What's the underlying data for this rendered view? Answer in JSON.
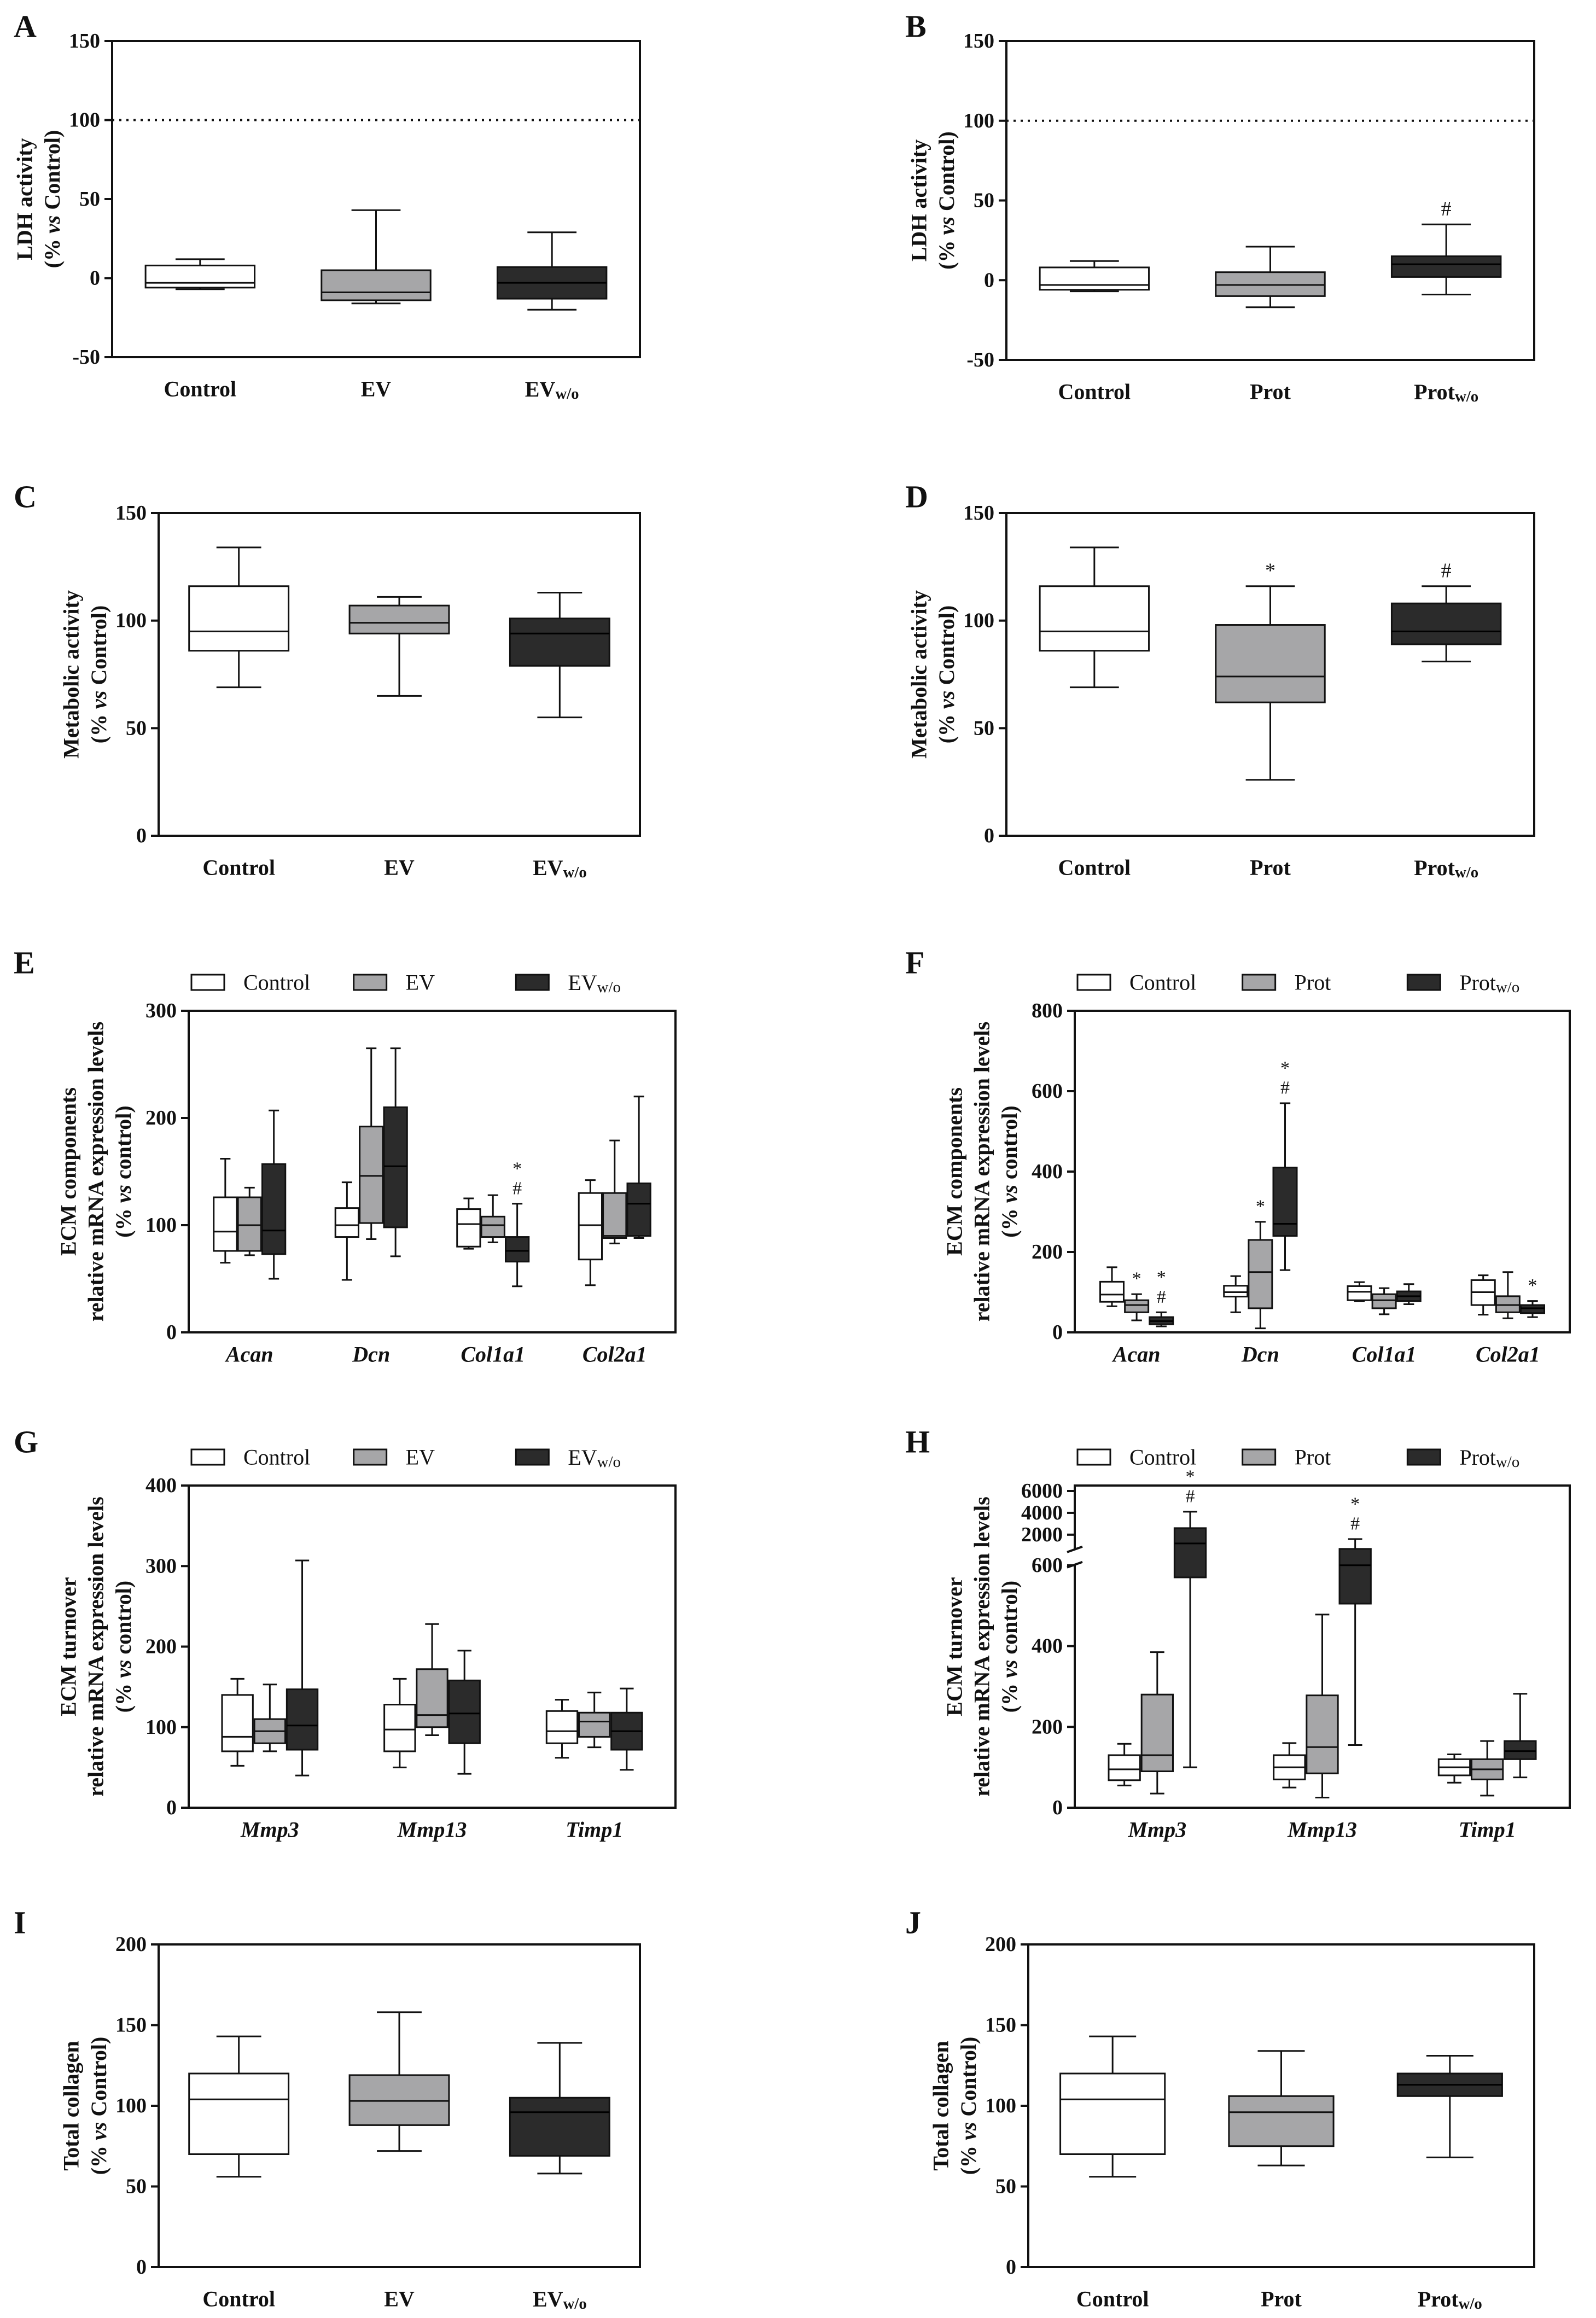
{
  "colors": {
    "white": "#ffffff",
    "gray": "#a6a6a8",
    "dark": "#2b2b2b",
    "line": "#111111"
  },
  "chart_data": [
    {
      "id": "A",
      "type": "box",
      "letter": "A",
      "ylabel": [
        "LDH activity",
        "(% vs Control)"
      ],
      "ylim": [
        -50,
        150
      ],
      "yticks": [
        "150",
        "100",
        "50",
        "0",
        "-50"
      ],
      "refline": 100,
      "groups": [
        {
          "label": "Control",
          "color": "white",
          "min": -7,
          "q1": -6,
          "median": -3,
          "q3": 8,
          "max": 12
        },
        {
          "label": "EV",
          "color": "gray",
          "min": -16,
          "q1": -14,
          "median": -9,
          "q3": 5,
          "max": 43
        },
        {
          "label": "EVw/o",
          "color": "dark",
          "min": -20,
          "q1": -13,
          "median": -3,
          "q3": 7,
          "max": 29
        }
      ]
    },
    {
      "id": "B",
      "type": "box",
      "letter": "B",
      "ylabel": [
        "LDH activity",
        "(% vs Control)"
      ],
      "ylim": [
        -50,
        150
      ],
      "yticks": [
        "150",
        "100",
        "50",
        "0",
        "-50"
      ],
      "refline": 100,
      "groups": [
        {
          "label": "Control",
          "color": "white",
          "min": -7,
          "q1": -6,
          "median": -3,
          "q3": 8,
          "max": 12
        },
        {
          "label": "Prot",
          "color": "gray",
          "min": -17,
          "q1": -10,
          "median": -3,
          "q3": 5,
          "max": 21
        },
        {
          "label": "Protw/o",
          "color": "dark",
          "min": -9,
          "q1": 2,
          "median": 10,
          "q3": 15,
          "max": 35,
          "marks": [
            "#"
          ]
        }
      ]
    },
    {
      "id": "C",
      "type": "box",
      "letter": "C",
      "ylabel": [
        "Metabolic activity",
        "(% vs Control)"
      ],
      "ylim": [
        0,
        150
      ],
      "yticks": [
        "150",
        "100",
        "50",
        "0"
      ],
      "groups": [
        {
          "label": "Control",
          "color": "white",
          "min": 69,
          "q1": 86,
          "median": 95,
          "q3": 116,
          "max": 134
        },
        {
          "label": "EV",
          "color": "gray",
          "min": 65,
          "q1": 94,
          "median": 99,
          "q3": 107,
          "max": 111
        },
        {
          "label": "EVw/o",
          "color": "dark",
          "min": 55,
          "q1": 79,
          "median": 94,
          "q3": 101,
          "max": 113
        }
      ]
    },
    {
      "id": "D",
      "type": "box",
      "letter": "D",
      "ylabel": [
        "Metabolic activity",
        "(% vs Control)"
      ],
      "ylim": [
        0,
        150
      ],
      "yticks": [
        "150",
        "100",
        "50",
        "0"
      ],
      "groups": [
        {
          "label": "Control",
          "color": "white",
          "min": 69,
          "q1": 86,
          "median": 95,
          "q3": 116,
          "max": 134
        },
        {
          "label": "Prot",
          "color": "gray",
          "min": 26,
          "q1": 62,
          "median": 74,
          "q3": 98,
          "max": 116,
          "marks": [
            "*"
          ]
        },
        {
          "label": "Protw/o",
          "color": "dark",
          "min": 81,
          "q1": 89,
          "median": 95,
          "q3": 108,
          "max": 116,
          "marks": [
            "#"
          ]
        }
      ]
    },
    {
      "id": "E",
      "type": "box",
      "letter": "E",
      "ylabel": [
        "ECM components",
        "relative mRNA expression levels",
        "(% vs control)"
      ],
      "ylim": [
        0,
        300
      ],
      "yticks": [
        "300",
        "200",
        "100",
        "0"
      ],
      "legend": [
        "Control",
        "EV",
        "EVw/o"
      ],
      "categories": [
        "Acan",
        "Dcn",
        "Col1a1",
        "Col2a1"
      ],
      "series": [
        {
          "name": "Control",
          "color": "white",
          "boxes": [
            {
              "min": 65,
              "q1": 76,
              "median": 94,
              "q3": 126,
              "max": 162
            },
            {
              "min": 49,
              "q1": 89,
              "median": 100,
              "q3": 116,
              "max": 140
            },
            {
              "min": 78,
              "q1": 80,
              "median": 101,
              "q3": 115,
              "max": 125
            },
            {
              "min": 44,
              "q1": 68,
              "median": 100,
              "q3": 130,
              "max": 142
            }
          ]
        },
        {
          "name": "EV",
          "color": "gray",
          "boxes": [
            {
              "min": 72,
              "q1": 76,
              "median": 100,
              "q3": 126,
              "max": 135
            },
            {
              "min": 87,
              "q1": 102,
              "median": 146,
              "q3": 192,
              "max": 265
            },
            {
              "min": 84,
              "q1": 89,
              "median": 100,
              "q3": 108,
              "max": 128
            },
            {
              "min": 83,
              "q1": 88,
              "median": 90,
              "q3": 130,
              "max": 179
            }
          ]
        },
        {
          "name": "EVw/o",
          "color": "dark",
          "boxes": [
            {
              "min": 50,
              "q1": 73,
              "median": 95,
              "q3": 157,
              "max": 207
            },
            {
              "min": 71,
              "q1": 98,
              "median": 155,
              "q3": 210,
              "max": 265
            },
            {
              "min": 43,
              "q1": 66,
              "median": 76,
              "q3": 89,
              "max": 120,
              "marks": [
                "#",
                "*"
              ]
            },
            {
              "min": 88,
              "q1": 90,
              "median": 120,
              "q3": 139,
              "max": 220
            }
          ]
        }
      ]
    },
    {
      "id": "F",
      "type": "box",
      "letter": "F",
      "ylabel": [
        "ECM components",
        "relative mRNA expression levels",
        "(% vs control)"
      ],
      "ylim": [
        0,
        800
      ],
      "yticks": [
        "800",
        "600",
        "400",
        "200",
        "0"
      ],
      "legend": [
        "Control",
        "Prot",
        "Protw/o"
      ],
      "categories": [
        "Acan",
        "Dcn",
        "Col1a1",
        "Col2a1"
      ],
      "series": [
        {
          "name": "Control",
          "color": "white",
          "boxes": [
            {
              "min": 65,
              "q1": 76,
              "median": 94,
              "q3": 126,
              "max": 162
            },
            {
              "min": 50,
              "q1": 89,
              "median": 100,
              "q3": 116,
              "max": 140
            },
            {
              "min": 78,
              "q1": 80,
              "median": 101,
              "q3": 115,
              "max": 125
            },
            {
              "min": 44,
              "q1": 68,
              "median": 100,
              "q3": 130,
              "max": 142
            }
          ]
        },
        {
          "name": "Prot",
          "color": "gray",
          "boxes": [
            {
              "min": 30,
              "q1": 50,
              "median": 68,
              "q3": 80,
              "max": 95,
              "marks": [
                "*"
              ]
            },
            {
              "min": 10,
              "q1": 60,
              "median": 150,
              "q3": 230,
              "max": 275,
              "marks": [
                "*"
              ]
            },
            {
              "min": 45,
              "q1": 60,
              "median": 80,
              "q3": 95,
              "max": 110
            },
            {
              "min": 35,
              "q1": 50,
              "median": 68,
              "q3": 90,
              "max": 150
            }
          ]
        },
        {
          "name": "Protw/o",
          "color": "dark",
          "boxes": [
            {
              "min": 15,
              "q1": 20,
              "median": 28,
              "q3": 38,
              "max": 50,
              "marks": [
                "#",
                "*"
              ]
            },
            {
              "min": 155,
              "q1": 240,
              "median": 270,
              "q3": 410,
              "max": 570,
              "marks": [
                "#",
                "*"
              ]
            },
            {
              "min": 70,
              "q1": 78,
              "median": 90,
              "q3": 102,
              "max": 120
            },
            {
              "min": 38,
              "q1": 48,
              "median": 60,
              "q3": 68,
              "max": 78,
              "marks": [
                "*"
              ]
            }
          ]
        }
      ]
    },
    {
      "id": "G",
      "type": "box",
      "letter": "G",
      "ylabel": [
        "ECM turnover",
        "relative mRNA expression levels",
        "(% vs control)"
      ],
      "ylim": [
        0,
        400
      ],
      "yticks": [
        "400",
        "300",
        "200",
        "100",
        "0"
      ],
      "legend": [
        "Control",
        "EV",
        "EVw/o"
      ],
      "categories": [
        "Mmp3",
        "Mmp13",
        "Timp1"
      ],
      "series": [
        {
          "name": "Control",
          "color": "white",
          "boxes": [
            {
              "min": 52,
              "q1": 70,
              "median": 88,
              "q3": 140,
              "max": 160
            },
            {
              "min": 50,
              "q1": 70,
              "median": 97,
              "q3": 128,
              "max": 160
            },
            {
              "min": 62,
              "q1": 80,
              "median": 95,
              "q3": 120,
              "max": 134
            }
          ]
        },
        {
          "name": "EV",
          "color": "gray",
          "boxes": [
            {
              "min": 70,
              "q1": 80,
              "median": 95,
              "q3": 110,
              "max": 153
            },
            {
              "min": 90,
              "q1": 100,
              "median": 115,
              "q3": 172,
              "max": 228
            },
            {
              "min": 75,
              "q1": 88,
              "median": 107,
              "q3": 118,
              "max": 143
            }
          ]
        },
        {
          "name": "EVw/o",
          "color": "dark",
          "boxes": [
            {
              "min": 40,
              "q1": 72,
              "median": 102,
              "q3": 147,
              "max": 307
            },
            {
              "min": 42,
              "q1": 80,
              "median": 117,
              "q3": 158,
              "max": 195
            },
            {
              "min": 47,
              "q1": 72,
              "median": 95,
              "q3": 118,
              "max": 148
            }
          ]
        }
      ]
    },
    {
      "id": "H",
      "type": "box",
      "letter": "H",
      "ylabel": [
        "ECM turnover",
        "relative mRNA expression levels",
        "(% vs control)"
      ],
      "broken_axis": true,
      "ylim_lower": [
        0,
        600
      ],
      "ylim_upper": [
        600,
        6000
      ],
      "yticks_lower": [
        "600",
        "400",
        "200",
        "0"
      ],
      "yticks_upper": [
        "6000",
        "4000",
        "2000"
      ],
      "legend": [
        "Control",
        "Prot",
        "Protw/o"
      ],
      "categories": [
        "Mmp3",
        "Mmp13",
        "Timp1"
      ],
      "series": [
        {
          "name": "Control",
          "color": "white",
          "boxes": [
            {
              "min": 55,
              "q1": 68,
              "median": 95,
              "q3": 130,
              "max": 158
            },
            {
              "min": 50,
              "q1": 70,
              "median": 100,
              "q3": 130,
              "max": 160
            },
            {
              "min": 62,
              "q1": 80,
              "median": 100,
              "q3": 120,
              "max": 132
            }
          ]
        },
        {
          "name": "Prot",
          "color": "gray",
          "boxes": [
            {
              "min": 35,
              "q1": 90,
              "median": 130,
              "q3": 280,
              "max": 385
            },
            {
              "min": 25,
              "q1": 85,
              "median": 150,
              "q3": 278,
              "max": 478
            },
            {
              "min": 30,
              "q1": 70,
              "median": 95,
              "q3": 120,
              "max": 165
            }
          ]
        },
        {
          "name": "Protw/o",
          "color": "dark",
          "boxes": [
            {
              "min": 100,
              "q1": 570,
              "median": 1200,
              "q3": 2600,
              "max": 4100,
              "marks": [
                "#",
                "*"
              ]
            },
            {
              "min": 155,
              "q1": 505,
              "median": 600,
              "q3": 700,
              "max": 1600,
              "marks": [
                "#",
                "*"
              ]
            },
            {
              "min": 75,
              "q1": 120,
              "median": 140,
              "q3": 165,
              "max": 282
            }
          ]
        }
      ]
    },
    {
      "id": "I",
      "type": "box",
      "letter": "I",
      "ylabel": [
        "Total collagen",
        "(% vs Control)"
      ],
      "ylim": [
        0,
        200
      ],
      "yticks": [
        "200",
        "150",
        "100",
        "50",
        "0"
      ],
      "groups": [
        {
          "label": "Control",
          "color": "white",
          "min": 56,
          "q1": 70,
          "median": 104,
          "q3": 120,
          "max": 143
        },
        {
          "label": "EV",
          "color": "gray",
          "min": 72,
          "q1": 88,
          "median": 103,
          "q3": 119,
          "max": 158
        },
        {
          "label": "EVw/o",
          "color": "dark",
          "min": 58,
          "q1": 69,
          "median": 96,
          "q3": 105,
          "max": 139
        }
      ]
    },
    {
      "id": "J",
      "type": "box",
      "letter": "J",
      "ylabel": [
        "Total collagen",
        "(% vs Control)"
      ],
      "ylim": [
        0,
        200
      ],
      "yticks": [
        "200",
        "150",
        "100",
        "50",
        "0"
      ],
      "groups": [
        {
          "label": "Control",
          "color": "white",
          "min": 56,
          "q1": 70,
          "median": 104,
          "q3": 120,
          "max": 143
        },
        {
          "label": "Prot",
          "color": "gray",
          "min": 63,
          "q1": 75,
          "median": 96,
          "q3": 106,
          "max": 134
        },
        {
          "label": "Protw/o",
          "color": "dark",
          "min": 68,
          "q1": 106,
          "median": 113,
          "q3": 120,
          "max": 131
        }
      ]
    }
  ]
}
